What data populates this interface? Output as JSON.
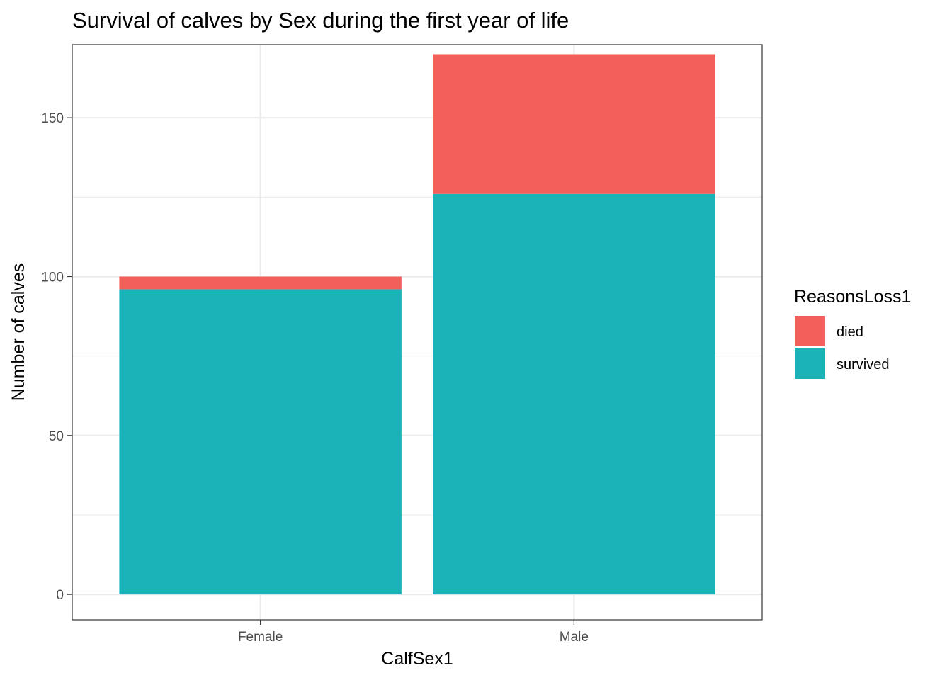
{
  "chart_data": {
    "type": "bar",
    "stacked": true,
    "title": "Survival of calves by Sex during the first year of life",
    "xlabel": "CalfSex1",
    "ylabel": "Number of calves",
    "categories": [
      "Female",
      "Male"
    ],
    "series": [
      {
        "name": "survived",
        "values": [
          96,
          126
        ],
        "color": "#1ab3b8"
      },
      {
        "name": "died",
        "values": [
          4,
          44
        ],
        "color": "#f3605c"
      }
    ],
    "ylim": [
      -8,
      173
    ],
    "yticks": [
      0,
      50,
      100,
      150
    ],
    "grid": true,
    "legend": {
      "title": "ReasonsLoss1",
      "position": "right",
      "entries": [
        "died",
        "survived"
      ]
    }
  }
}
